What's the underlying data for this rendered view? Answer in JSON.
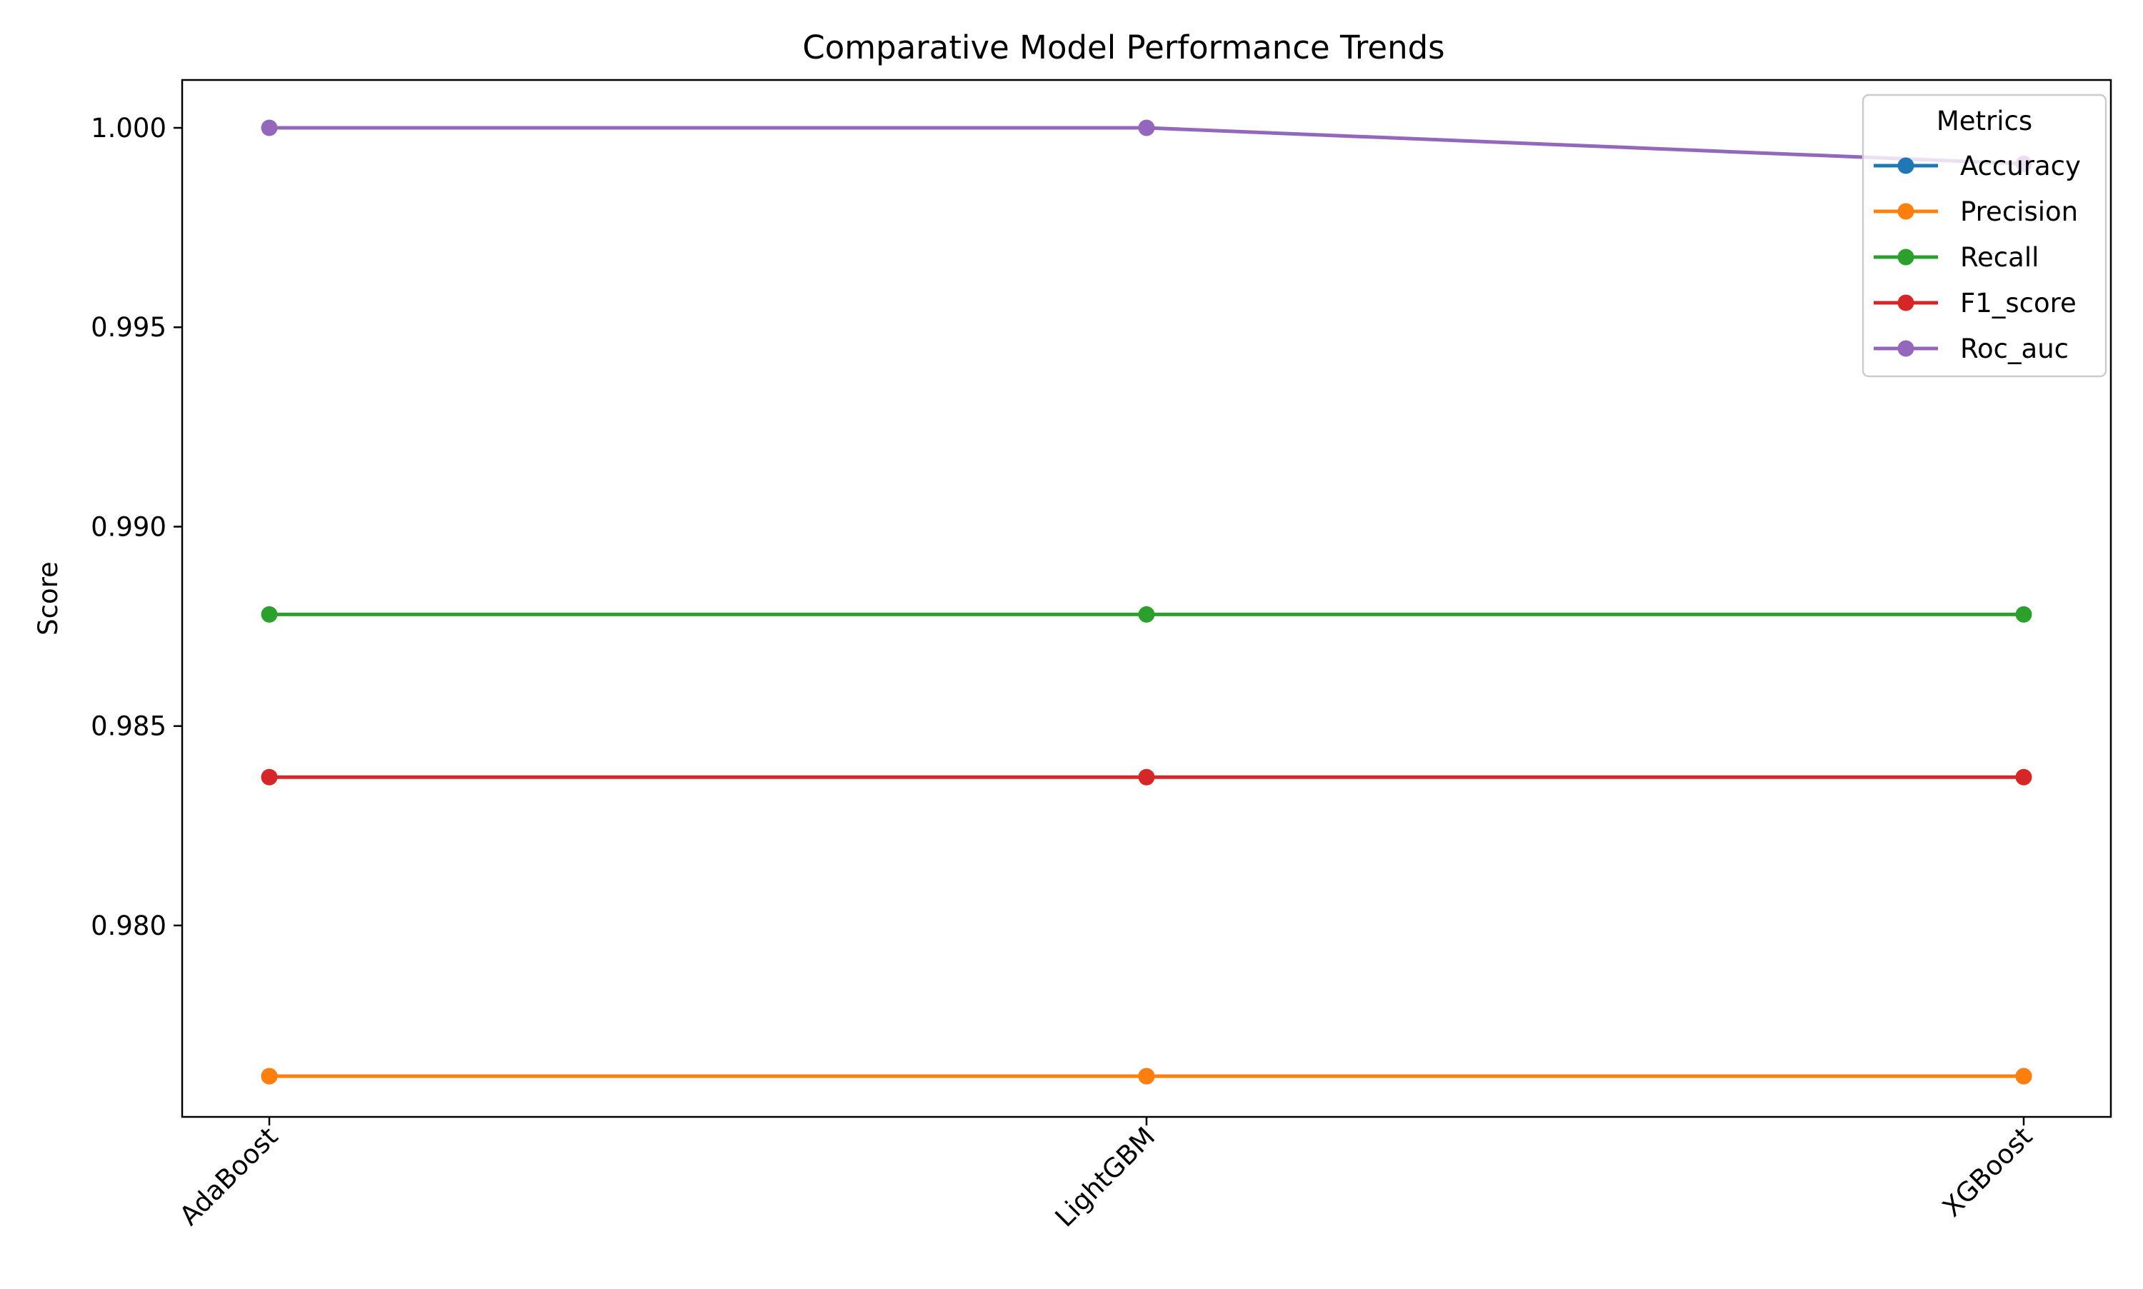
{
  "chart_data": {
    "type": "line",
    "title": "Comparative Model Performance Trends",
    "xlabel": "",
    "ylabel": "Score",
    "categories": [
      "AdaBoost",
      "LightGBM",
      "XGBoost"
    ],
    "ylim": [
      0.9752,
      1.0012
    ],
    "yticks": [
      0.98,
      0.985,
      0.99,
      0.995,
      1.0
    ],
    "ytick_labels": [
      "0.980",
      "0.985",
      "0.990",
      "0.995",
      "1.000"
    ],
    "grid": false,
    "legend": {
      "title": "Metrics",
      "placement": "top-right"
    },
    "series": [
      {
        "name": "Accuracy",
        "color": "#1f77b4",
        "values": [
          0.97622,
          0.97622,
          0.97622
        ]
      },
      {
        "name": "Precision",
        "color": "#ff7f0e",
        "values": [
          0.97622,
          0.97622,
          0.97622
        ]
      },
      {
        "name": "Recall",
        "color": "#2ca02c",
        "values": [
          0.9878,
          0.9878,
          0.9878
        ]
      },
      {
        "name": "F1_score",
        "color": "#d62728",
        "values": [
          0.98372,
          0.98372,
          0.98372
        ]
      },
      {
        "name": "Roc_auc",
        "color": "#9467bd",
        "values": [
          1.0,
          1.0,
          0.9991
        ]
      }
    ]
  }
}
